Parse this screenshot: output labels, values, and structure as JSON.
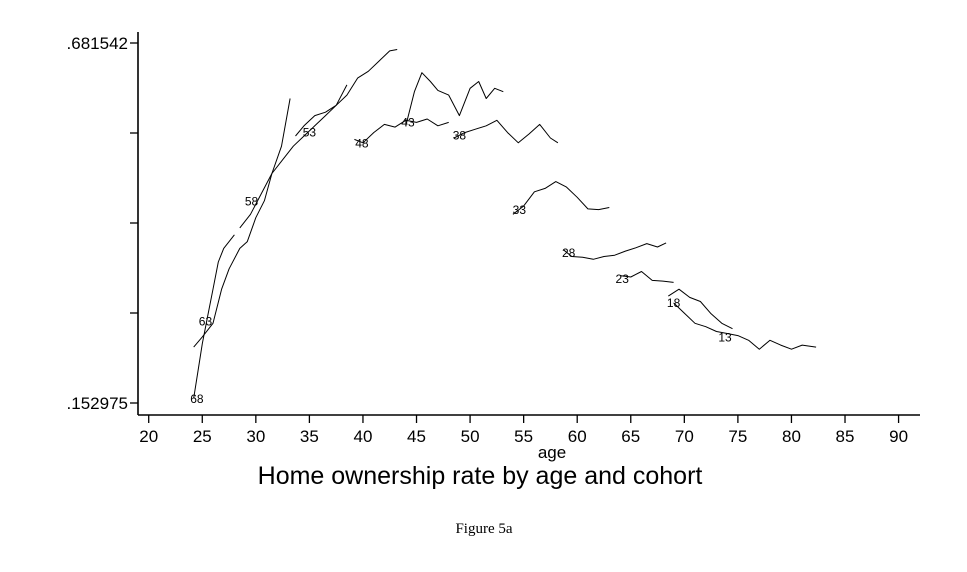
{
  "chart_data": {
    "type": "line",
    "title": "Home ownership rate by age and cohort",
    "xlabel": "age",
    "ylabel": "",
    "xlim": [
      19,
      92
    ],
    "ylim": [
      0.152975,
      0.681542
    ],
    "x_ticks": [
      20,
      25,
      30,
      35,
      40,
      45,
      50,
      55,
      60,
      65,
      70,
      75,
      80,
      85,
      90
    ],
    "y_ticks": [
      0.152975,
      0.681542
    ],
    "y_tick_labels": [
      ".152975",
      ".681542"
    ],
    "y_minor_ticks": [
      0.285117,
      0.417258,
      0.5494
    ],
    "grid": false,
    "legend": "none",
    "series": [
      {
        "name": "68",
        "label_at": [
          24.5,
          0.159
        ],
        "x": [
          24.2,
          24.6,
          25,
          25.5,
          26,
          26.5,
          27,
          27.5,
          28
        ],
        "y": [
          0.16,
          0.2,
          0.24,
          0.28,
          0.32,
          0.36,
          0.38,
          0.39,
          0.4
        ]
      },
      {
        "name": "63",
        "label_at": [
          25.3,
          0.273
        ],
        "x": [
          24.2,
          25,
          26,
          26.8,
          27.5,
          28.5,
          29.2,
          30,
          30.8,
          31.5,
          32.4,
          33.2
        ],
        "y": [
          0.235,
          0.25,
          0.27,
          0.32,
          0.35,
          0.38,
          0.39,
          0.425,
          0.45,
          0.49,
          0.53,
          0.6
        ]
      },
      {
        "name": "58",
        "label_at": [
          29.6,
          0.449
        ],
        "x": [
          28.5,
          29.5,
          30.5,
          31.5,
          32.5,
          33.5,
          34.5,
          35.5,
          36.5,
          37.5,
          38.5
        ],
        "y": [
          0.41,
          0.43,
          0.46,
          0.49,
          0.51,
          0.53,
          0.545,
          0.56,
          0.575,
          0.59,
          0.62
        ]
      },
      {
        "name": "53",
        "label_at": [
          35.0,
          0.55
        ],
        "x": [
          33.7,
          34.5,
          35.5,
          36.5,
          37.5,
          38.5,
          39.5,
          40.5,
          41.5,
          42.5,
          43.2
        ],
        "y": [
          0.545,
          0.56,
          0.575,
          0.58,
          0.59,
          0.605,
          0.63,
          0.64,
          0.655,
          0.67,
          0.672
        ]
      },
      {
        "name": "48",
        "label_at": [
          39.9,
          0.534
        ],
        "x": [
          39.2,
          40,
          41,
          42,
          43,
          44,
          45,
          46,
          47,
          48
        ],
        "y": [
          0.54,
          0.535,
          0.55,
          0.562,
          0.558,
          0.568,
          0.565,
          0.57,
          0.56,
          0.565
        ]
      },
      {
        "name": "43",
        "label_at": [
          44.2,
          0.565
        ],
        "x": [
          44,
          44.8,
          45.5,
          46.3,
          47,
          48,
          49,
          50,
          50.8,
          51.5,
          52.3,
          53.1
        ],
        "y": [
          0.56,
          0.61,
          0.638,
          0.625,
          0.612,
          0.605,
          0.575,
          0.615,
          0.625,
          0.6,
          0.615,
          0.61
        ]
      },
      {
        "name": "38",
        "label_at": [
          49.0,
          0.546
        ],
        "x": [
          48.5,
          49.5,
          50.5,
          51.5,
          52.5,
          53.5,
          54.5,
          55.5,
          56.5,
          57.5,
          58.2
        ],
        "y": [
          0.542,
          0.55,
          0.555,
          0.56,
          0.568,
          0.55,
          0.535,
          0.548,
          0.562,
          0.542,
          0.535
        ]
      },
      {
        "name": "33",
        "label_at": [
          54.6,
          0.436
        ],
        "x": [
          54,
          55,
          56,
          57,
          58,
          59,
          60,
          61,
          62,
          63
        ],
        "y": [
          0.43,
          0.442,
          0.463,
          0.468,
          0.478,
          0.47,
          0.455,
          0.438,
          0.437,
          0.44
        ]
      },
      {
        "name": "28",
        "label_at": [
          59.2,
          0.373
        ],
        "x": [
          58.7,
          59.5,
          60.5,
          61.5,
          62.5,
          63.5,
          64.5,
          65.5,
          66.5,
          67.5,
          68.3
        ],
        "y": [
          0.378,
          0.368,
          0.367,
          0.364,
          0.368,
          0.37,
          0.376,
          0.381,
          0.387,
          0.382,
          0.388
        ]
      },
      {
        "name": "23",
        "label_at": [
          64.2,
          0.335
        ],
        "x": [
          64,
          65,
          66,
          67,
          68,
          69
        ],
        "y": [
          0.34,
          0.338,
          0.346,
          0.333,
          0.332,
          0.33
        ]
      },
      {
        "name": "18",
        "label_at": [
          69.0,
          0.3
        ],
        "x": [
          68.5,
          69.5,
          70.5,
          71.5,
          72.5,
          73.5,
          74.5
        ],
        "y": [
          0.31,
          0.32,
          0.308,
          0.302,
          0.284,
          0.27,
          0.262
        ]
      },
      {
        "name": "13",
        "label_at": [
          73.8,
          0.249
        ],
        "x": [
          69,
          70,
          71,
          72,
          73,
          74,
          75,
          76,
          77,
          78,
          79,
          80,
          81,
          82.3
        ],
        "y": [
          0.3,
          0.285,
          0.27,
          0.265,
          0.258,
          0.255,
          0.252,
          0.245,
          0.232,
          0.245,
          0.238,
          0.232,
          0.238,
          0.235
        ]
      }
    ]
  },
  "figure": {
    "caption": "Figure 5a"
  }
}
